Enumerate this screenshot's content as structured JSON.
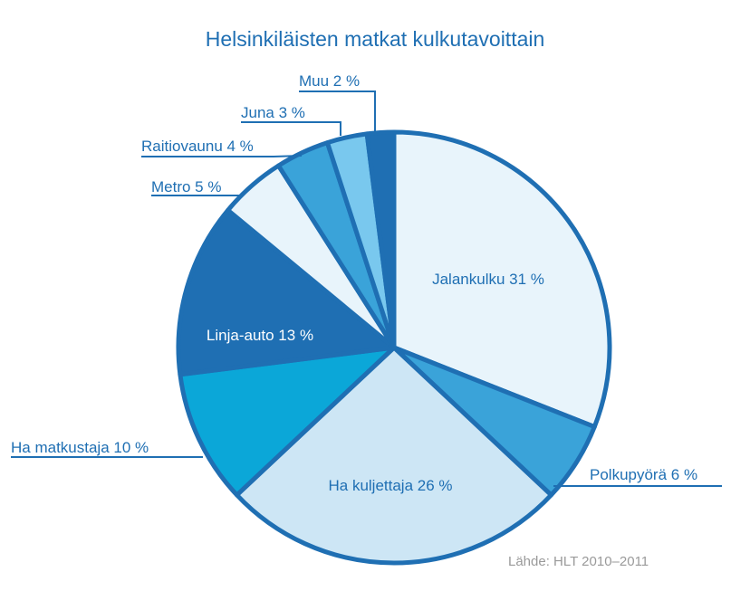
{
  "chart_data": {
    "type": "pie",
    "title": "Helsinkiläisten matkat kulkutavoittain",
    "source": "Lähde: HLT 2010–2011",
    "slices": [
      {
        "label": "Jalankulku 31 %",
        "value": 31,
        "color": "#e8f4fb"
      },
      {
        "label": "Polkupyörä 6 %",
        "value": 6,
        "color": "#3aa3d9"
      },
      {
        "label": "Ha kuljettaja 26 %",
        "value": 26,
        "color": "#cde6f5"
      },
      {
        "label": "Ha matkustaja 10 %",
        "value": 10,
        "color": "#0ba7d8"
      },
      {
        "label": "Linja-auto 13 %",
        "value": 13,
        "color": "#1f6fb3"
      },
      {
        "label": "Metro 5 %",
        "value": 5,
        "color": "#e8f4fb"
      },
      {
        "label": "Raitiovaunu 4 %",
        "value": 4,
        "color": "#3aa3d9"
      },
      {
        "label": "Juna 3 %",
        "value": 3,
        "color": "#79c8ee"
      },
      {
        "label": "Muu 2 %",
        "value": 2,
        "color": "#1f6fb3"
      }
    ],
    "outline_color": "#1f6fb3",
    "text_color": "#1f6fb3"
  }
}
